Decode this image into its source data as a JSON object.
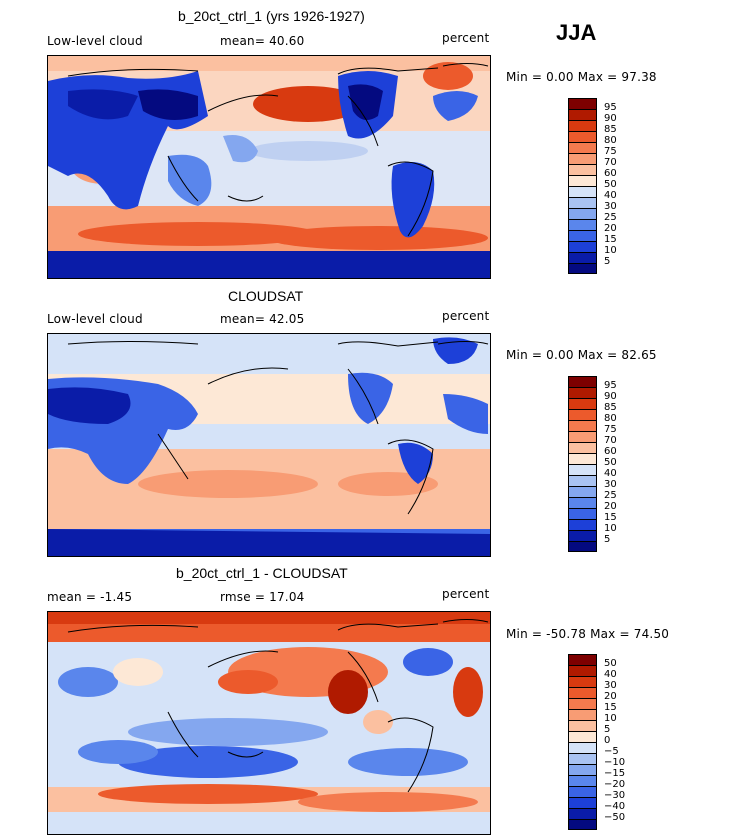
{
  "season": "JJA",
  "panels": [
    {
      "title": "b_20ct_ctrl_1 (yrs 1926-1927)",
      "left_label": "Low-level cloud",
      "center_label": "mean=  40.60",
      "right_label": "percent",
      "minmax": "Min =   0.00 Max =  97.38",
      "colorbar_labels": [
        "95",
        "90",
        "85",
        "80",
        "75",
        "70",
        "60",
        "50",
        "40",
        "30",
        "25",
        "20",
        "15",
        "10",
        "5"
      ]
    },
    {
      "title": "CLOUDSAT",
      "left_label": "Low-level cloud",
      "center_label": "mean=  42.05",
      "right_label": "percent",
      "minmax": "Min =   0.00 Max =  82.65",
      "colorbar_labels": [
        "95",
        "90",
        "85",
        "80",
        "75",
        "70",
        "60",
        "50",
        "40",
        "30",
        "25",
        "20",
        "15",
        "10",
        "5"
      ]
    },
    {
      "title": "b_20ct_ctrl_1 - CLOUDSAT",
      "left_label": "mean =  -1.45",
      "center_label": "rmse =  17.04",
      "right_label": "percent",
      "minmax": "Min = -50.78 Max =  74.50",
      "colorbar_labels": [
        "50",
        "40",
        "30",
        "20",
        "15",
        "10",
        "5",
        "0",
        "−5",
        "−10",
        "−15",
        "−20",
        "−30",
        "−40",
        "−50"
      ]
    }
  ],
  "colorbar_colors": [
    "#7d0000",
    "#b01a00",
    "#d83a10",
    "#ec5a2c",
    "#f47a4e",
    "#f89c74",
    "#fbc0a0",
    "#fde8d6",
    "#d5e3f8",
    "#a9c3f2",
    "#84a7ef",
    "#5a86ec",
    "#3a64e6",
    "#1d40d8",
    "#0a1ca8",
    "#040a80"
  ]
}
